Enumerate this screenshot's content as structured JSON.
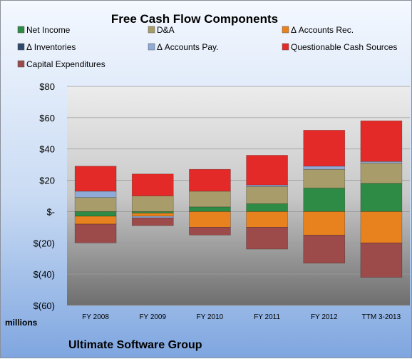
{
  "chart_data": {
    "type": "bar",
    "stacked": true,
    "title": "Free Cash Flow Components",
    "ylabel": "millions",
    "footer": "Ultimate Software Group",
    "ylim": [
      -60,
      80
    ],
    "yticks": [
      {
        "value": 80,
        "label": "$80"
      },
      {
        "value": 60,
        "label": "$60"
      },
      {
        "value": 40,
        "label": "$40"
      },
      {
        "value": 20,
        "label": "$20"
      },
      {
        "value": 0,
        "label": "$-"
      },
      {
        "value": -20,
        "label": "$(20)"
      },
      {
        "value": -40,
        "label": "$(40)"
      },
      {
        "value": -60,
        "label": "$(60)"
      }
    ],
    "categories": [
      "FY 2008",
      "FY 2009",
      "FY 2010",
      "FY 2011",
      "FY 2012",
      "TTM 3-2013"
    ],
    "legend_position": "top",
    "grid": true,
    "series": [
      {
        "name": "Net Income",
        "color": "#2e8b45",
        "values": [
          -3,
          -1,
          3,
          5,
          15,
          18
        ]
      },
      {
        "name": "D&A",
        "color": "#a89c6a",
        "values": [
          9,
          10,
          10,
          11,
          12,
          13
        ]
      },
      {
        "name": "Δ Accounts Rec.",
        "color": "#e8821e",
        "values": [
          -5,
          -2,
          -10,
          -10,
          -15,
          -20
        ]
      },
      {
        "name": "Δ Inventories",
        "color": "#2c4a6b",
        "values": [
          0,
          0,
          0,
          0,
          0,
          0
        ]
      },
      {
        "name": "Δ Accounts Pay.",
        "color": "#8faad6",
        "values": [
          4,
          -1,
          0,
          1,
          2,
          1
        ]
      },
      {
        "name": "Questionable Cash Sources",
        "color": "#e42a28",
        "values": [
          16,
          14,
          14,
          19,
          23,
          26
        ]
      },
      {
        "name": "Capital Expenditures",
        "color": "#9c4a4a",
        "values": [
          -12,
          -5,
          -5,
          -14,
          -18,
          -22
        ]
      }
    ]
  }
}
